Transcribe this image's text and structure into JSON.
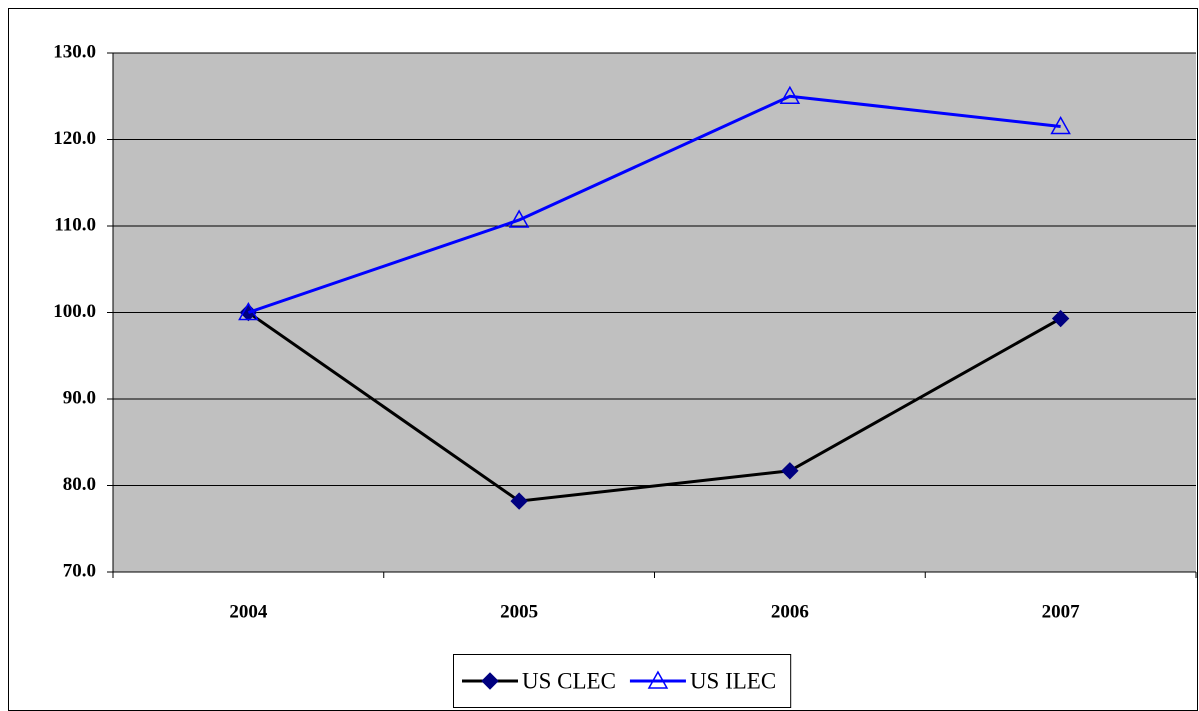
{
  "chart_data": {
    "type": "line",
    "categories": [
      "2004",
      "2005",
      "2006",
      "2007"
    ],
    "series": [
      {
        "name": "US CLEC",
        "color": "#000000",
        "marker_color": "#000080",
        "marker": "diamond",
        "values": [
          100.0,
          78.2,
          81.7,
          99.3
        ]
      },
      {
        "name": "US ILEC",
        "color": "#0000ff",
        "marker_color": "#0000ff",
        "marker": "triangle",
        "values": [
          100.0,
          110.7,
          125.0,
          121.5
        ]
      }
    ],
    "ylim": [
      70,
      130
    ],
    "yticks": [
      {
        "value": 70,
        "label": "70.0"
      },
      {
        "value": 80,
        "label": "80.0"
      },
      {
        "value": 90,
        "label": "90.0"
      },
      {
        "value": 100,
        "label": "100.0"
      },
      {
        "value": 110,
        "label": "110.0"
      },
      {
        "value": 120,
        "label": "120.0"
      },
      {
        "value": 130,
        "label": "130.0"
      }
    ],
    "grid": true,
    "plot_background": "#c0c0c0",
    "legend": "bottom"
  }
}
